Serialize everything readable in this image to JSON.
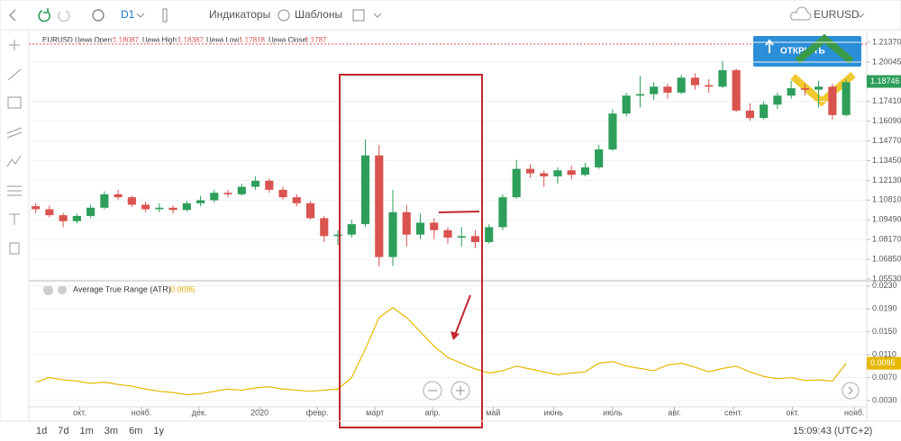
{
  "toolbar": {
    "timeframe": "D1",
    "indicators": "Индикаторы",
    "templates": "Шаблоны",
    "symbol": "EURUSD"
  },
  "info": {
    "symbol": "EURUSD",
    "open_label": "Цена Open:",
    "open": 1.18087,
    "high_label": "Цена High:",
    "high": 1.18387,
    "low_label": "Цена Low:",
    "low": 1.17818,
    "close_label": "Цена Close:",
    "close": 1.1787
  },
  "trade_button": "ОТКРЫТЬ",
  "chart_data": [
    {
      "type": "candlestick",
      "up_color": "#2e9e5b",
      "down_color": "#d9534f",
      "grid": true,
      "ylim": [
        1.0541,
        1.2191
      ],
      "xlim": [
        -0.5,
        60.5
      ],
      "yticks": [
        {
          "value": 1.2137,
          "label": "1.21370"
        },
        1.20045,
        {
          "value": 1.1741,
          "label": "1.17410"
        },
        {
          "value": 1.1609,
          "label": "1.16090"
        },
        {
          "value": 1.1477,
          "label": "1.14770"
        },
        {
          "value": 1.1345,
          "label": "1.13450"
        },
        {
          "value": 1.1213,
          "label": "1.12130"
        },
        {
          "value": 1.1081,
          "label": "1.10810"
        },
        {
          "value": 1.0949,
          "label": "1.09490"
        },
        {
          "value": 1.0817,
          "label": "1.08170"
        },
        {
          "value": 1.0685,
          "label": "1.06850"
        },
        {
          "value": 1.0553,
          "label": "1.05530"
        }
      ],
      "last_price": 1.18746,
      "candles": [
        [
          1.104,
          1.106,
          1.0995,
          1.102
        ],
        [
          1.102,
          1.1045,
          1.0965,
          1.098
        ],
        [
          1.098,
          1.0995,
          1.09,
          1.094
        ],
        [
          1.094,
          1.099,
          1.0925,
          1.0975
        ],
        [
          1.0975,
          1.105,
          1.096,
          1.103
        ],
        [
          1.103,
          1.114,
          1.102,
          1.112
        ],
        [
          1.112,
          1.115,
          1.1085,
          1.11
        ],
        [
          1.11,
          1.111,
          1.1035,
          1.105
        ],
        [
          1.105,
          1.107,
          1.1,
          1.102
        ],
        [
          1.102,
          1.106,
          1.1,
          1.103
        ],
        [
          1.103,
          1.1045,
          1.099,
          1.1015
        ],
        [
          1.1015,
          1.1075,
          1.1005,
          1.106
        ],
        [
          1.106,
          1.111,
          1.104,
          1.108
        ],
        [
          1.108,
          1.115,
          1.1065,
          1.113
        ],
        [
          1.113,
          1.115,
          1.11,
          1.112
        ],
        [
          1.112,
          1.119,
          1.111,
          1.117
        ],
        [
          1.117,
          1.124,
          1.115,
          1.121
        ],
        [
          1.121,
          1.1225,
          1.113,
          1.115
        ],
        [
          1.115,
          1.117,
          1.1085,
          1.11
        ],
        [
          1.11,
          1.112,
          1.104,
          1.106
        ],
        [
          1.106,
          1.1075,
          1.095,
          1.096
        ],
        [
          1.096,
          1.0975,
          1.08,
          1.084
        ],
        [
          1.084,
          1.088,
          1.078,
          1.085
        ],
        [
          1.085,
          1.095,
          1.083,
          1.092
        ],
        [
          1.092,
          1.1487,
          1.09,
          1.138
        ],
        [
          1.138,
          1.145,
          1.0636,
          1.07
        ],
        [
          1.07,
          1.115,
          1.064,
          1.1
        ],
        [
          1.1,
          1.105,
          1.077,
          1.085
        ],
        [
          1.085,
          1.099,
          1.082,
          1.093
        ],
        [
          1.093,
          1.096,
          1.082,
          1.088
        ],
        [
          1.088,
          1.09,
          1.079,
          1.083
        ],
        [
          1.083,
          1.09,
          1.077,
          1.084
        ],
        [
          1.084,
          1.088,
          1.076,
          1.08
        ],
        [
          1.08,
          1.092,
          1.079,
          1.09
        ],
        [
          1.09,
          1.112,
          1.088,
          1.11
        ],
        [
          1.11,
          1.135,
          1.109,
          1.129
        ],
        [
          1.129,
          1.132,
          1.123,
          1.126
        ],
        [
          1.126,
          1.128,
          1.117,
          1.124
        ],
        [
          1.124,
          1.13,
          1.119,
          1.128
        ],
        [
          1.128,
          1.131,
          1.122,
          1.125
        ],
        [
          1.125,
          1.133,
          1.124,
          1.13
        ],
        [
          1.13,
          1.145,
          1.129,
          1.142
        ],
        [
          1.142,
          1.169,
          1.141,
          1.166
        ],
        [
          1.166,
          1.18,
          1.164,
          1.178
        ],
        [
          1.178,
          1.191,
          1.17,
          1.179
        ],
        [
          1.179,
          1.187,
          1.175,
          1.184
        ],
        [
          1.184,
          1.186,
          1.176,
          1.18
        ],
        [
          1.18,
          1.192,
          1.179,
          1.19
        ],
        [
          1.19,
          1.193,
          1.182,
          1.185
        ],
        [
          1.185,
          1.189,
          1.18,
          1.184
        ],
        [
          1.184,
          1.2011,
          1.183,
          1.195
        ],
        [
          1.195,
          1.196,
          1.167,
          1.168
        ],
        [
          1.168,
          1.173,
          1.1612,
          1.163
        ],
        [
          1.163,
          1.174,
          1.162,
          1.172
        ],
        [
          1.172,
          1.18,
          1.169,
          1.178
        ],
        [
          1.178,
          1.188,
          1.176,
          1.183
        ],
        [
          1.183,
          1.186,
          1.178,
          1.182
        ],
        [
          1.182,
          1.188,
          1.17,
          1.184
        ],
        [
          1.184,
          1.186,
          1.162,
          1.165
        ],
        [
          1.165,
          1.189,
          1.164,
          1.187
        ]
      ]
    },
    {
      "type": "line",
      "title": "Average True Range (ATR)",
      "last_value": 0.0095,
      "color": "#e6b800",
      "grid": true,
      "ylim": [
        0.0019,
        0.0239
      ],
      "xlim": [
        -0.5,
        60.5
      ],
      "yticks": [
        {
          "value": 0.023,
          "label": "0.0230"
        },
        {
          "value": 0.019,
          "label": "0.0190"
        },
        {
          "value": 0.015,
          "label": "0.0150"
        },
        {
          "value": 0.011,
          "label": "0.0110"
        },
        {
          "value": 0.007,
          "label": "0.0070"
        },
        {
          "value": 0.003,
          "label": "0.0030"
        }
      ],
      "xticks": [
        {
          "value": 3.2,
          "label": "окт."
        },
        {
          "value": 7.7,
          "label": "нояб."
        },
        {
          "value": 11.9,
          "label": "дек."
        },
        {
          "value": 16.3,
          "label": "2020"
        },
        {
          "value": 20.5,
          "label": "февр."
        },
        {
          "value": 24.7,
          "label": "март"
        },
        {
          "value": 28.9,
          "label": "апр."
        },
        {
          "value": 33.3,
          "label": "май"
        },
        {
          "value": 37.7,
          "label": "июнь"
        },
        {
          "value": 42,
          "label": "июль"
        },
        {
          "value": 46.5,
          "label": "авг."
        },
        {
          "value": 50.8,
          "label": "сент."
        },
        {
          "value": 55.1,
          "label": "окт."
        },
        {
          "value": 59.6,
          "label": "нояб."
        }
      ],
      "values": [
        0.0062,
        0.007,
        0.0066,
        0.0064,
        0.006,
        0.0062,
        0.0058,
        0.0055,
        0.005,
        0.0046,
        0.0044,
        0.004,
        0.0042,
        0.0046,
        0.005,
        0.0048,
        0.0052,
        0.0054,
        0.005,
        0.0048,
        0.0046,
        0.0048,
        0.005,
        0.007,
        0.012,
        0.0175,
        0.0192,
        0.0175,
        0.015,
        0.0125,
        0.0105,
        0.0095,
        0.0085,
        0.0078,
        0.0082,
        0.009,
        0.0085,
        0.008,
        0.0075,
        0.0078,
        0.008,
        0.0095,
        0.0098,
        0.009,
        0.0086,
        0.0082,
        0.0092,
        0.0095,
        0.0088,
        0.008,
        0.0086,
        0.009,
        0.008,
        0.0072,
        0.0068,
        0.007,
        0.0065,
        0.0066,
        0.0064,
        0.0095
      ]
    }
  ],
  "ranges": [
    "1d",
    "7d",
    "1m",
    "3m",
    "6m",
    "1y"
  ],
  "clock": "15:09:43 (UTC+2)"
}
